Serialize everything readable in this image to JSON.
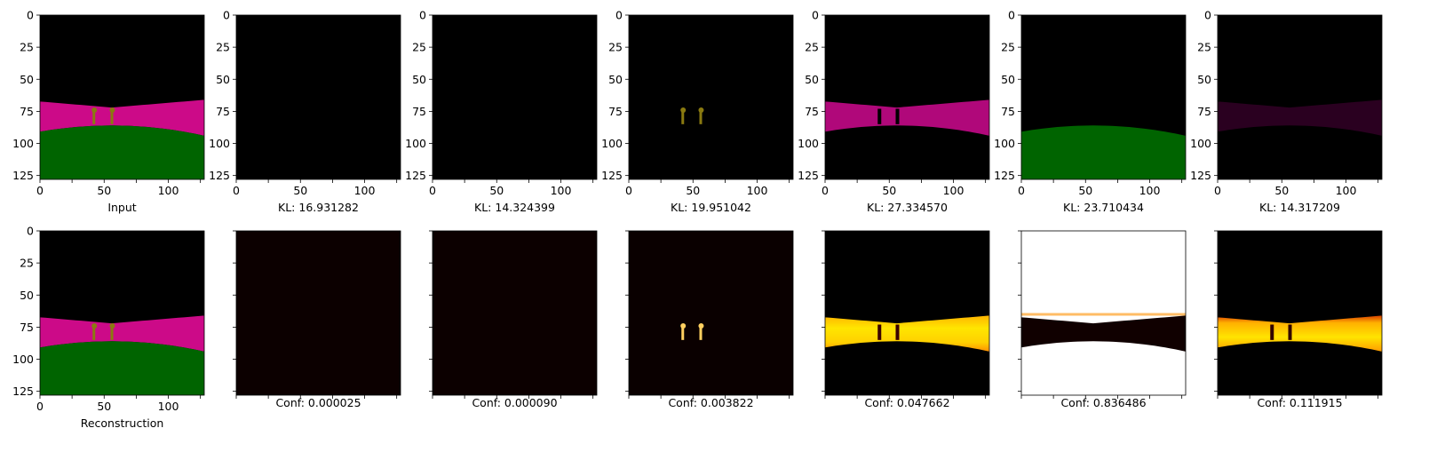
{
  "chart_data": {
    "type": "image_grid",
    "image_size": [
      128,
      128
    ],
    "axis_ticks": [
      0,
      25,
      50,
      75,
      100,
      125
    ],
    "x_axis_ticks": [
      0,
      50,
      100
    ],
    "colors": {
      "magenta": "#cc0a88",
      "green": "#006400",
      "black": "#000000",
      "olive": "#8a7a10",
      "hot_yellow": "#ffe400",
      "hot_orange": "#ff9a00",
      "hot_red": "#b81800",
      "white": "#ffffff"
    },
    "top_row": [
      {
        "caption": "Input",
        "kind": "input"
      },
      {
        "caption": "KL: 16.931282",
        "kind": "empty"
      },
      {
        "caption": "KL: 14.324399",
        "kind": "empty"
      },
      {
        "caption": "KL: 19.951042",
        "kind": "poles"
      },
      {
        "caption": "KL: 27.334570",
        "kind": "band"
      },
      {
        "caption": "KL: 23.710434",
        "kind": "ground"
      },
      {
        "caption": "KL: 14.317209",
        "kind": "faint"
      }
    ],
    "bottom_row": [
      {
        "caption": "Reconstruction",
        "kind": "input"
      },
      {
        "caption": "Conf: 0.000025",
        "kind": "dark"
      },
      {
        "caption": "Conf: 0.000090",
        "kind": "dark"
      },
      {
        "caption": "Conf: 0.003822",
        "kind": "hotpoles"
      },
      {
        "caption": "Conf: 0.047662",
        "kind": "hotband"
      },
      {
        "caption": "Conf: 0.836486",
        "kind": "whitemask"
      },
      {
        "caption": "Conf: 0.111915",
        "kind": "hotband2"
      }
    ]
  }
}
